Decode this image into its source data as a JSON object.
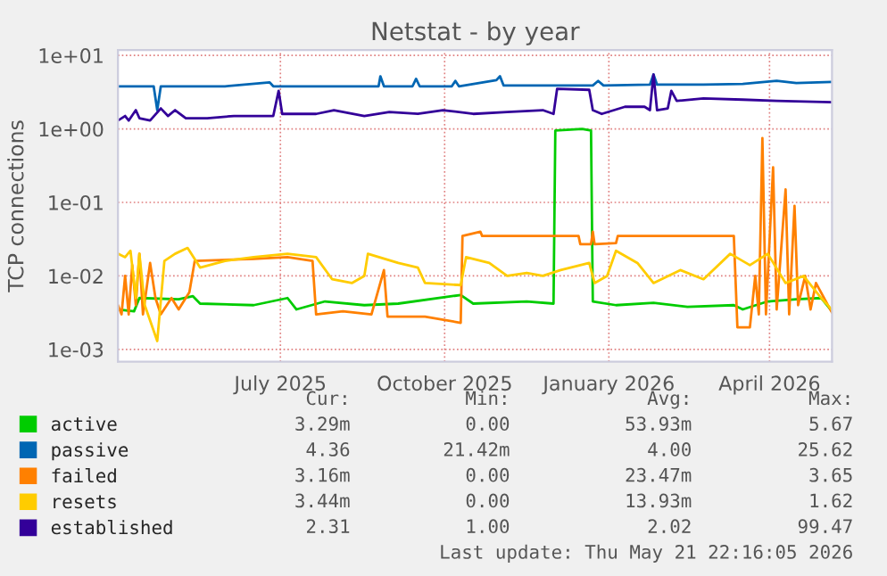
{
  "chart_data": {
    "type": "line",
    "title": "Netstat - by year",
    "ylabel": "TCP connections",
    "log": "y",
    "grid": true,
    "legend": "bottom",
    "marker": "none",
    "line_style": "solid",
    "xlim": [
      "2025-04-16",
      "2026-05-21"
    ],
    "ylim": [
      0.00068,
      11.8
    ],
    "xticks": [
      {
        "value": "2025-07-16",
        "label": "July 2025"
      },
      {
        "value": "2025-10-16",
        "label": "October 2025"
      },
      {
        "value": "2026-01-16",
        "label": "January 2026"
      },
      {
        "value": "2026-04-16",
        "label": "April 2026"
      }
    ],
    "yticks": [
      {
        "value": 0.001,
        "label": "1e-03"
      },
      {
        "value": 0.01,
        "label": "1e-02"
      },
      {
        "value": 0.1,
        "label": "1e-01"
      },
      {
        "value": 1,
        "label": "1e+00"
      },
      {
        "value": 10,
        "label": "1e+01"
      }
    ],
    "annotations": [
      "Cur:",
      "Min:",
      "Avg:",
      "Max:",
      "3.29m",
      "0.00",
      "53.93m",
      "5.67",
      "4.36",
      "21.42m",
      "4.00",
      "25.62",
      "3.16m",
      "0.00",
      "23.47m",
      "3.65",
      "3.44m",
      "0.00",
      "13.93m",
      "1.62",
      "2.31",
      "1.00",
      "2.02",
      "99.47",
      "Last update: Thu May 21 22:16:05 2026"
    ],
    "series": [
      {
        "name": "active",
        "color": "#00cc00",
        "x": [
          "2025-04-16",
          "2025-04-25",
          "2025-04-28",
          "2025-05-20",
          "2025-05-28",
          "2025-06-01",
          "2025-07-01",
          "2025-07-20",
          "2025-07-25",
          "2025-08-10",
          "2025-09-01",
          "2025-09-20",
          "2025-10-25",
          "2025-11-01",
          "2025-12-01",
          "2025-12-16",
          "2025-12-17",
          "2026-01-01",
          "2026-01-06",
          "2026-01-07",
          "2026-01-20",
          "2026-02-10",
          "2026-03-01",
          "2026-03-27",
          "2026-04-01",
          "2026-04-15",
          "2026-05-01",
          "2026-05-15",
          "2026-05-21"
        ],
        "values": [
          0.0035,
          0.0033,
          0.005,
          0.0048,
          0.0053,
          0.0042,
          0.004,
          0.005,
          0.0035,
          0.0045,
          0.004,
          0.0042,
          0.0055,
          0.0042,
          0.0045,
          0.0042,
          0.95,
          1.0,
          0.95,
          0.0045,
          0.004,
          0.0043,
          0.0038,
          0.004,
          0.0035,
          0.0045,
          0.0048,
          0.005,
          0.0033
        ]
      },
      {
        "name": "passive",
        "color": "#0066b3",
        "x": [
          "2025-04-16",
          "2025-05-06",
          "2025-05-08",
          "2025-05-10",
          "2025-06-15",
          "2025-07-10",
          "2025-07-12",
          "2025-09-09",
          "2025-09-10",
          "2025-09-12",
          "2025-09-28",
          "2025-09-30",
          "2025-10-02",
          "2025-10-20",
          "2025-10-22",
          "2025-10-24",
          "2025-11-14",
          "2025-11-16",
          "2025-11-18",
          "2025-12-18",
          "2026-01-07",
          "2026-01-10",
          "2026-01-13",
          "2026-02-08",
          "2026-02-10",
          "2026-02-12",
          "2026-03-10",
          "2026-04-01",
          "2026-04-20",
          "2026-05-01",
          "2026-05-21"
        ],
        "values": [
          3.8,
          3.8,
          1.8,
          3.8,
          3.8,
          4.3,
          3.8,
          3.8,
          5.2,
          3.8,
          3.8,
          4.8,
          3.8,
          3.8,
          4.5,
          3.8,
          4.6,
          5.2,
          3.9,
          3.9,
          3.9,
          4.5,
          3.9,
          4.0,
          5.5,
          4.0,
          4.0,
          4.1,
          4.5,
          4.2,
          4.36
        ]
      },
      {
        "name": "failed",
        "color": "#ff8000",
        "x": [
          "2025-04-16",
          "2025-04-18",
          "2025-04-20",
          "2025-04-22",
          "2025-04-24",
          "2025-04-26",
          "2025-04-28",
          "2025-04-30",
          "2025-05-04",
          "2025-05-07",
          "2025-05-10",
          "2025-05-16",
          "2025-05-20",
          "2025-05-26",
          "2025-05-29",
          "2025-07-01",
          "2025-07-20",
          "2025-08-03",
          "2025-08-05",
          "2025-08-20",
          "2025-09-05",
          "2025-09-12",
          "2025-09-14",
          "2025-10-05",
          "2025-10-25",
          "2025-10-26",
          "2025-11-05",
          "2025-11-06",
          "2025-12-30",
          "2025-12-31",
          "2026-01-06",
          "2026-01-07",
          "2026-01-08",
          "2026-01-20",
          "2026-01-21",
          "2026-03-27",
          "2026-03-29",
          "2026-04-05",
          "2026-04-08",
          "2026-04-10",
          "2026-04-12",
          "2026-04-14",
          "2026-04-18",
          "2026-04-20",
          "2026-04-25",
          "2026-04-27",
          "2026-04-30",
          "2026-05-02",
          "2026-05-06",
          "2026-05-09",
          "2026-05-12",
          "2026-05-21"
        ],
        "values": [
          0.004,
          0.003,
          0.01,
          0.003,
          0.014,
          0.004,
          0.02,
          0.003,
          0.015,
          0.005,
          0.003,
          0.005,
          0.0035,
          0.006,
          0.016,
          0.017,
          0.018,
          0.016,
          0.003,
          0.0033,
          0.003,
          0.012,
          0.0028,
          0.0028,
          0.0023,
          0.035,
          0.04,
          0.035,
          0.035,
          0.027,
          0.027,
          0.04,
          0.027,
          0.028,
          0.035,
          0.035,
          0.002,
          0.002,
          0.01,
          0.003,
          0.75,
          0.003,
          0.3,
          0.0035,
          0.15,
          0.003,
          0.09,
          0.004,
          0.01,
          0.0035,
          0.008,
          0.00316
        ]
      },
      {
        "name": "resets",
        "color": "#ffcc00",
        "x": [
          "2025-04-16",
          "2025-04-20",
          "2025-04-23",
          "2025-04-26",
          "2025-04-28",
          "2025-05-01",
          "2025-05-08",
          "2025-05-12",
          "2025-05-18",
          "2025-05-25",
          "2025-06-01",
          "2025-06-15",
          "2025-07-01",
          "2025-07-20",
          "2025-08-05",
          "2025-08-14",
          "2025-08-25",
          "2025-09-01",
          "2025-09-03",
          "2025-09-20",
          "2025-10-01",
          "2025-10-05",
          "2025-10-25",
          "2025-10-28",
          "2025-11-10",
          "2025-11-20",
          "2025-12-01",
          "2025-12-10",
          "2025-12-20",
          "2026-01-05",
          "2026-01-08",
          "2026-01-15",
          "2026-01-20",
          "2026-02-01",
          "2026-02-10",
          "2026-02-25",
          "2026-03-10",
          "2026-03-25",
          "2026-04-05",
          "2026-04-15",
          "2026-04-25",
          "2026-05-05",
          "2026-05-15",
          "2026-05-21"
        ],
        "values": [
          0.02,
          0.018,
          0.022,
          0.005,
          0.02,
          0.004,
          0.0013,
          0.016,
          0.02,
          0.024,
          0.013,
          0.016,
          0.018,
          0.02,
          0.018,
          0.009,
          0.008,
          0.01,
          0.02,
          0.015,
          0.013,
          0.008,
          0.0075,
          0.018,
          0.015,
          0.01,
          0.011,
          0.01,
          0.012,
          0.015,
          0.008,
          0.01,
          0.022,
          0.015,
          0.008,
          0.012,
          0.009,
          0.02,
          0.014,
          0.02,
          0.008,
          0.01,
          0.005,
          0.00344
        ]
      },
      {
        "name": "established",
        "color": "#330099",
        "x": [
          "2025-04-16",
          "2025-04-20",
          "2025-04-22",
          "2025-04-26",
          "2025-04-28",
          "2025-05-04",
          "2025-05-10",
          "2025-05-14",
          "2025-05-18",
          "2025-05-24",
          "2025-06-05",
          "2025-06-20",
          "2025-07-12",
          "2025-07-15",
          "2025-07-17",
          "2025-08-05",
          "2025-08-15",
          "2025-09-01",
          "2025-09-15",
          "2025-10-01",
          "2025-10-15",
          "2025-11-01",
          "2025-11-20",
          "2025-12-10",
          "2025-12-16",
          "2025-12-18",
          "2026-01-05",
          "2026-01-07",
          "2026-01-12",
          "2026-01-25",
          "2026-02-05",
          "2026-02-08",
          "2026-02-10",
          "2026-02-12",
          "2026-02-18",
          "2026-02-20",
          "2026-02-23",
          "2026-03-10",
          "2026-04-01",
          "2026-04-20",
          "2026-05-21"
        ],
        "values": [
          1.3,
          1.5,
          1.3,
          1.8,
          1.4,
          1.3,
          1.9,
          1.5,
          1.8,
          1.4,
          1.4,
          1.5,
          1.5,
          3.3,
          1.6,
          1.6,
          1.8,
          1.5,
          1.7,
          1.6,
          1.8,
          1.6,
          1.7,
          1.8,
          1.6,
          3.5,
          3.4,
          1.8,
          1.6,
          2.0,
          2.0,
          1.8,
          5.5,
          1.8,
          1.9,
          3.3,
          2.4,
          2.6,
          2.5,
          2.4,
          2.31
        ]
      }
    ]
  }
}
